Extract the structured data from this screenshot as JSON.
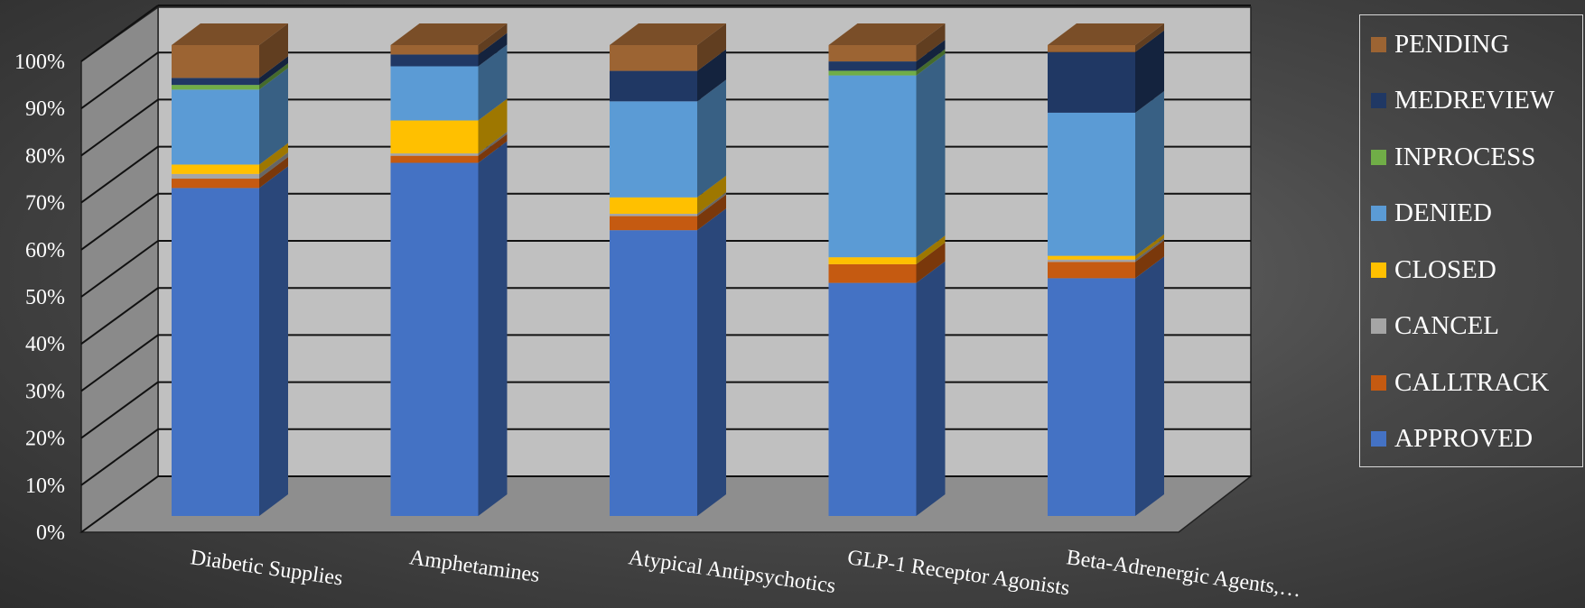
{
  "chart_data": {
    "type": "bar",
    "stacked": true,
    "percent_stacked": true,
    "three_d": true,
    "title": "",
    "xlabel": "",
    "ylabel": "",
    "ylim": [
      0,
      100
    ],
    "y_ticks": [
      "0%",
      "10%",
      "20%",
      "30%",
      "40%",
      "50%",
      "60%",
      "70%",
      "80%",
      "90%",
      "100%"
    ],
    "grid": true,
    "legend_position": "right",
    "categories": [
      "Diabetic Supplies",
      "Amphetamines",
      "Atypical Antipsychotics",
      "GLP-1 Receptor Agonists",
      "Beta-Adrenergic Agents,…"
    ],
    "series": [
      {
        "name": "APPROVED",
        "color": "#4472c4",
        "values": [
          70,
          75,
          61,
          50,
          51
        ]
      },
      {
        "name": "CALLTRACK",
        "color": "#c55a11",
        "values": [
          2,
          1.5,
          3,
          4,
          3.5
        ]
      },
      {
        "name": "CANCEL",
        "color": "#a5a5a5",
        "values": [
          1,
          0.5,
          0.5,
          0,
          0.5
        ]
      },
      {
        "name": "CLOSED",
        "color": "#ffc000",
        "values": [
          2,
          7,
          3.5,
          1.5,
          0.8
        ]
      },
      {
        "name": "DENIED",
        "color": "#5b9bd5",
        "values": [
          16,
          11.5,
          20.5,
          39,
          30.7
        ]
      },
      {
        "name": "INPROCESS",
        "color": "#70ad47",
        "values": [
          1,
          0,
          0,
          1,
          0
        ]
      },
      {
        "name": "MEDREVIEW",
        "color": "#203864",
        "values": [
          1.5,
          2.5,
          6.5,
          2,
          13
        ]
      },
      {
        "name": "PENDING",
        "color": "#9c6433",
        "values": [
          7,
          2,
          5.5,
          3.5,
          1.5
        ]
      }
    ]
  }
}
